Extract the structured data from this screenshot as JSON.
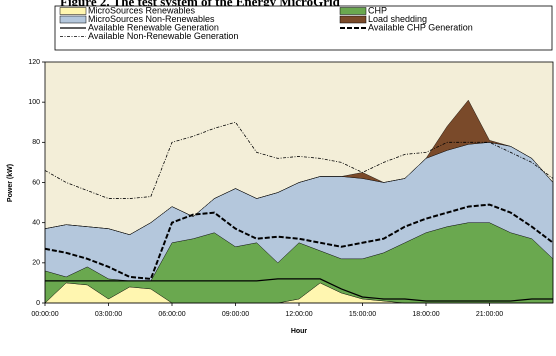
{
  "chart_data": {
    "type": "stacked_area",
    "title": "Figure 2. The test system of the Energy MicroGrid",
    "x_label": "Hour",
    "y_label": "Power (kW)",
    "x": [
      0,
      1,
      2,
      3,
      4,
      5,
      6,
      7,
      8,
      9,
      10,
      11,
      12,
      13,
      14,
      15,
      16,
      17,
      18,
      19,
      20,
      21,
      22,
      23,
      24
    ],
    "xlim": [
      0,
      24
    ],
    "xticks": [
      {
        "value": 0,
        "label": "00:00:00"
      },
      {
        "value": 3,
        "label": "03:00:00"
      },
      {
        "value": 6,
        "label": "06:00:00"
      },
      {
        "value": 9,
        "label": "09:00:00"
      },
      {
        "value": 12,
        "label": "12:00:00"
      },
      {
        "value": 15,
        "label": "15:00:00"
      },
      {
        "value": 18,
        "label": "18:00:00"
      },
      {
        "value": 21,
        "label": "21:00:00"
      }
    ],
    "ylim": [
      0,
      120
    ],
    "yticks": [
      0,
      20,
      40,
      60,
      80,
      100,
      120
    ],
    "grid": false,
    "background": "#f3eed8",
    "series": [
      {
        "name": "MicroSources Renewables",
        "kind": "area",
        "color": "#fff6b0",
        "values": [
          0,
          10,
          9,
          2,
          8,
          7,
          0,
          0,
          0,
          0,
          0,
          0,
          2,
          10,
          5,
          2,
          1,
          0,
          0,
          0,
          0,
          0,
          0,
          0,
          0
        ]
      },
      {
        "name": "CHP",
        "kind": "area",
        "color": "#6aa84f",
        "values": [
          16,
          3,
          9,
          10,
          3,
          4,
          30,
          32,
          35,
          28,
          30,
          20,
          28,
          16,
          17,
          20,
          24,
          30,
          35,
          38,
          40,
          40,
          35,
          32,
          22
        ]
      },
      {
        "name": "MicroSources Non-Renewables",
        "kind": "area",
        "color": "#b4c7dc",
        "values": [
          21,
          26,
          20,
          25,
          23,
          29,
          18,
          11,
          17,
          29,
          22,
          35,
          30,
          37,
          41,
          40,
          35,
          32,
          37,
          38,
          39,
          40,
          43,
          40,
          38
        ]
      },
      {
        "name": "Load shedding",
        "kind": "area",
        "color": "#7a4a2a",
        "values": [
          0,
          0,
          0,
          0,
          0,
          0,
          0,
          0,
          0,
          0,
          0,
          0,
          0,
          0,
          0,
          3,
          0,
          0,
          0,
          12,
          22,
          1,
          0,
          0,
          0
        ]
      },
      {
        "name": "Available Renewable Generation",
        "kind": "line",
        "style": "solid",
        "color": "#000000",
        "values": [
          11,
          11,
          11,
          11,
          11,
          11,
          11,
          11,
          11,
          11,
          11,
          12,
          12,
          12,
          7,
          3,
          2,
          2,
          1,
          1,
          1,
          1,
          1,
          2,
          2
        ]
      },
      {
        "name": "Available Non-Renewable Generation",
        "kind": "line",
        "style": "dashdot",
        "color": "#000000",
        "values": [
          66,
          60,
          56,
          52,
          52,
          53,
          80,
          83,
          87,
          90,
          75,
          72,
          73,
          72,
          70,
          65,
          70,
          74,
          75,
          80,
          80,
          80,
          75,
          70,
          62
        ]
      },
      {
        "name": "Available CHP Generation",
        "kind": "line",
        "style": "dashed",
        "color": "#000000",
        "values": [
          27,
          25,
          22,
          18,
          13,
          12,
          40,
          44,
          45,
          37,
          32,
          33,
          32,
          30,
          28,
          30,
          32,
          38,
          42,
          45,
          48,
          49,
          45,
          38,
          30
        ]
      }
    ]
  }
}
